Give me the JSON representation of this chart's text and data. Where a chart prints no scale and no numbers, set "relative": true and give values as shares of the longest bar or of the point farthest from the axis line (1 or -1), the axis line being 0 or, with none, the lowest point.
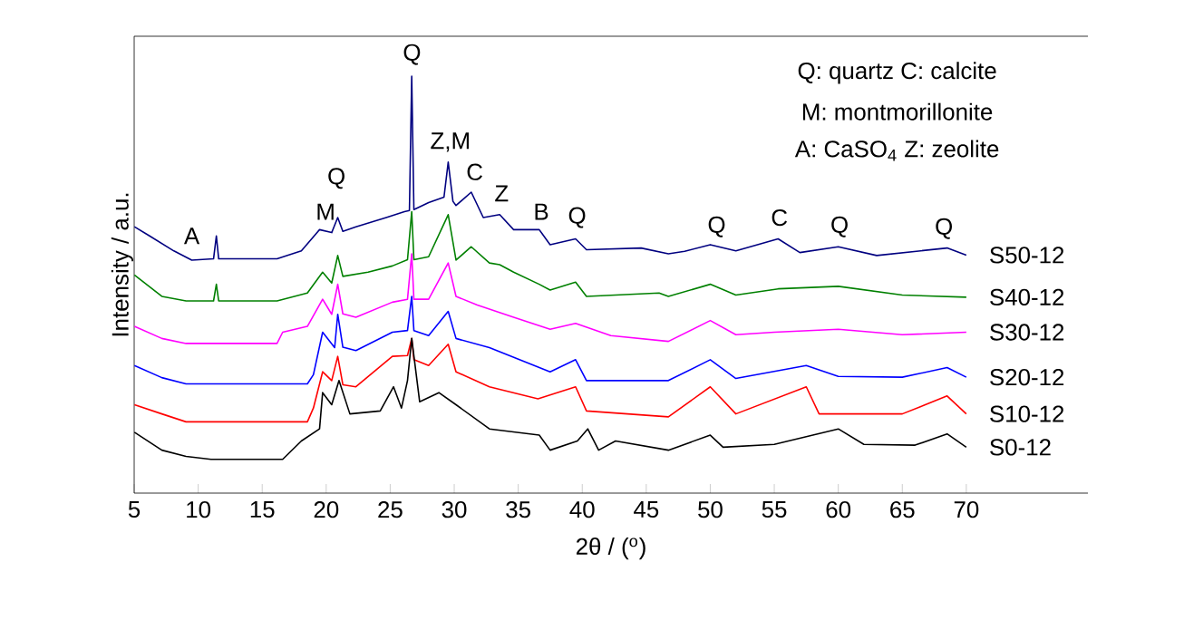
{
  "chart_data": {
    "type": "line",
    "relative": true,
    "xlabel": "2θ / ($^{o}$)",
    "ylabel": "Intensity / a.u.",
    "xlim": [
      5,
      79.5
    ],
    "xticks": [
      5,
      10,
      15,
      20,
      25,
      30,
      35,
      40,
      45,
      50,
      55,
      60,
      65,
      70
    ],
    "series": [
      {
        "name": "S50-12",
        "color": "#000080",
        "x": [
          5.02,
          6.2,
          8.1,
          9.5,
          11.2,
          11.42,
          11.6,
          16.16,
          18.06,
          19.48,
          20.43,
          20.9,
          21.3,
          22.32,
          24.69,
          26.11,
          26.5,
          26.68,
          26.85,
          28.0,
          29.2,
          29.53,
          29.9,
          30.14,
          31.33,
          32.27,
          33.55,
          34.64,
          36.64,
          37.49,
          39.48,
          40.33,
          44.6,
          46.73,
          48,
          50,
          52,
          55.3,
          57,
          60,
          63,
          68.5,
          70
        ],
        "values": [
          0.639,
          0.617,
          0.581,
          0.559,
          0.562,
          0.617,
          0.562,
          0.562,
          0.581,
          0.632,
          0.625,
          0.661,
          0.628,
          0.639,
          0.661,
          0.675,
          0.678,
          1.0,
          0.68,
          0.697,
          0.71,
          0.794,
          0.7,
          0.69,
          0.722,
          0.661,
          0.668,
          0.632,
          0.632,
          0.596,
          0.61,
          0.584,
          0.588,
          0.574,
          0.58,
          0.596,
          0.581,
          0.61,
          0.577,
          0.591,
          0.57,
          0.588,
          0.571
        ]
      },
      {
        "name": "S40-12",
        "color": "#008000",
        "x": [
          5.02,
          7.16,
          9.05,
          11.2,
          11.42,
          11.6,
          16.16,
          18.53,
          19.72,
          20.43,
          20.9,
          21.3,
          23.27,
          25.17,
          26.35,
          26.68,
          26.85,
          28.0,
          29.53,
          30.14,
          31.33,
          32.75,
          33.55,
          34.64,
          36.64,
          37.49,
          39.48,
          40.33,
          46.0,
          46.73,
          50,
          52,
          55.3,
          60,
          65,
          70
        ],
        "values": [
          0.523,
          0.472,
          0.461,
          0.461,
          0.501,
          0.461,
          0.461,
          0.48,
          0.53,
          0.504,
          0.57,
          0.52,
          0.53,
          0.545,
          0.56,
          0.675,
          0.56,
          0.567,
          0.668,
          0.559,
          0.591,
          0.552,
          0.548,
          0.53,
          0.501,
          0.487,
          0.506,
          0.472,
          0.48,
          0.472,
          0.501,
          0.475,
          0.49,
          0.496,
          0.475,
          0.47
        ]
      },
      {
        "name": "S30-12",
        "color": "#ff00ff",
        "x": [
          5.02,
          7.16,
          9.05,
          16.16,
          16.6,
          18.53,
          19.72,
          20.43,
          20.9,
          21.3,
          22.32,
          25.17,
          26.35,
          26.68,
          26.85,
          28.0,
          29.53,
          30.14,
          31.8,
          34.64,
          37.49,
          39.48,
          42.23,
          46.73,
          50,
          52,
          55,
          60,
          65,
          70
        ],
        "values": [
          0.4,
          0.371,
          0.359,
          0.359,
          0.386,
          0.4,
          0.465,
          0.429,
          0.501,
          0.43,
          0.422,
          0.458,
          0.465,
          0.574,
          0.465,
          0.465,
          0.552,
          0.472,
          0.451,
          0.422,
          0.393,
          0.407,
          0.378,
          0.364,
          0.414,
          0.38,
          0.386,
          0.393,
          0.38,
          0.386
        ]
      },
      {
        "name": "S20-12",
        "color": "#0000ff",
        "x": [
          5.02,
          7.16,
          9.05,
          18.53,
          19.0,
          19.72,
          20.66,
          20.9,
          21.3,
          22.32,
          25.17,
          26.35,
          26.68,
          26.85,
          28.0,
          29.53,
          30.14,
          32.75,
          35.12,
          37.49,
          39.48,
          40.33,
          46.73,
          50,
          52,
          57.5,
          60,
          65,
          68.5,
          70
        ],
        "values": [
          0.306,
          0.277,
          0.262,
          0.262,
          0.284,
          0.386,
          0.349,
          0.429,
          0.35,
          0.342,
          0.386,
          0.39,
          0.472,
          0.39,
          0.378,
          0.436,
          0.371,
          0.349,
          0.32,
          0.291,
          0.32,
          0.27,
          0.27,
          0.32,
          0.275,
          0.306,
          0.28,
          0.278,
          0.301,
          0.278
        ]
      },
      {
        "name": "S10-12",
        "color": "#ff0000",
        "x": [
          5.02,
          7.16,
          9.05,
          18.53,
          19.0,
          19.72,
          20.43,
          20.9,
          21.3,
          22.32,
          25.17,
          26.35,
          26.68,
          26.85,
          28.0,
          29.53,
          30.14,
          32.75,
          36.54,
          39.48,
          40.33,
          46.73,
          50,
          52,
          57.5,
          58.5,
          65,
          68.5,
          70
        ],
        "values": [
          0.212,
          0.19,
          0.171,
          0.171,
          0.204,
          0.291,
          0.27,
          0.328,
          0.26,
          0.255,
          0.328,
          0.33,
          0.371,
          0.32,
          0.306,
          0.357,
          0.291,
          0.255,
          0.226,
          0.255,
          0.197,
          0.183,
          0.255,
          0.19,
          0.255,
          0.19,
          0.19,
          0.233,
          0.19
        ]
      },
      {
        "name": "S0-12",
        "color": "#000000",
        "x": [
          5.02,
          7.16,
          9.05,
          11,
          16.6,
          18.06,
          19.48,
          19.72,
          20.43,
          21.0,
          21.85,
          24.22,
          25.26,
          25.88,
          26.35,
          26.68,
          27.3,
          28.8,
          30.14,
          32.75,
          36.64,
          37.49,
          39.62,
          40.43,
          41.28,
          42.6,
          46.73,
          50,
          51,
          55,
          60,
          62,
          66,
          68.5,
          70
        ],
        "values": [
          0.146,
          0.103,
          0.088,
          0.081,
          0.081,
          0.125,
          0.154,
          0.241,
          0.212,
          0.27,
          0.19,
          0.197,
          0.255,
          0.204,
          0.27,
          0.371,
          0.219,
          0.241,
          0.212,
          0.154,
          0.139,
          0.103,
          0.125,
          0.154,
          0.103,
          0.125,
          0.103,
          0.139,
          0.11,
          0.117,
          0.154,
          0.117,
          0.115,
          0.142,
          0.11
        ]
      }
    ],
    "annotations": [
      "A",
      "M",
      "Q",
      "Q",
      "Z,M",
      "C",
      "Z",
      "B",
      "Q",
      "Q",
      "C",
      "Q",
      "Q",
      "Q: quartz C: calcite",
      "M: montmorillonite",
      "A: CaSO$_{4}$ Z: zeolite"
    ]
  }
}
